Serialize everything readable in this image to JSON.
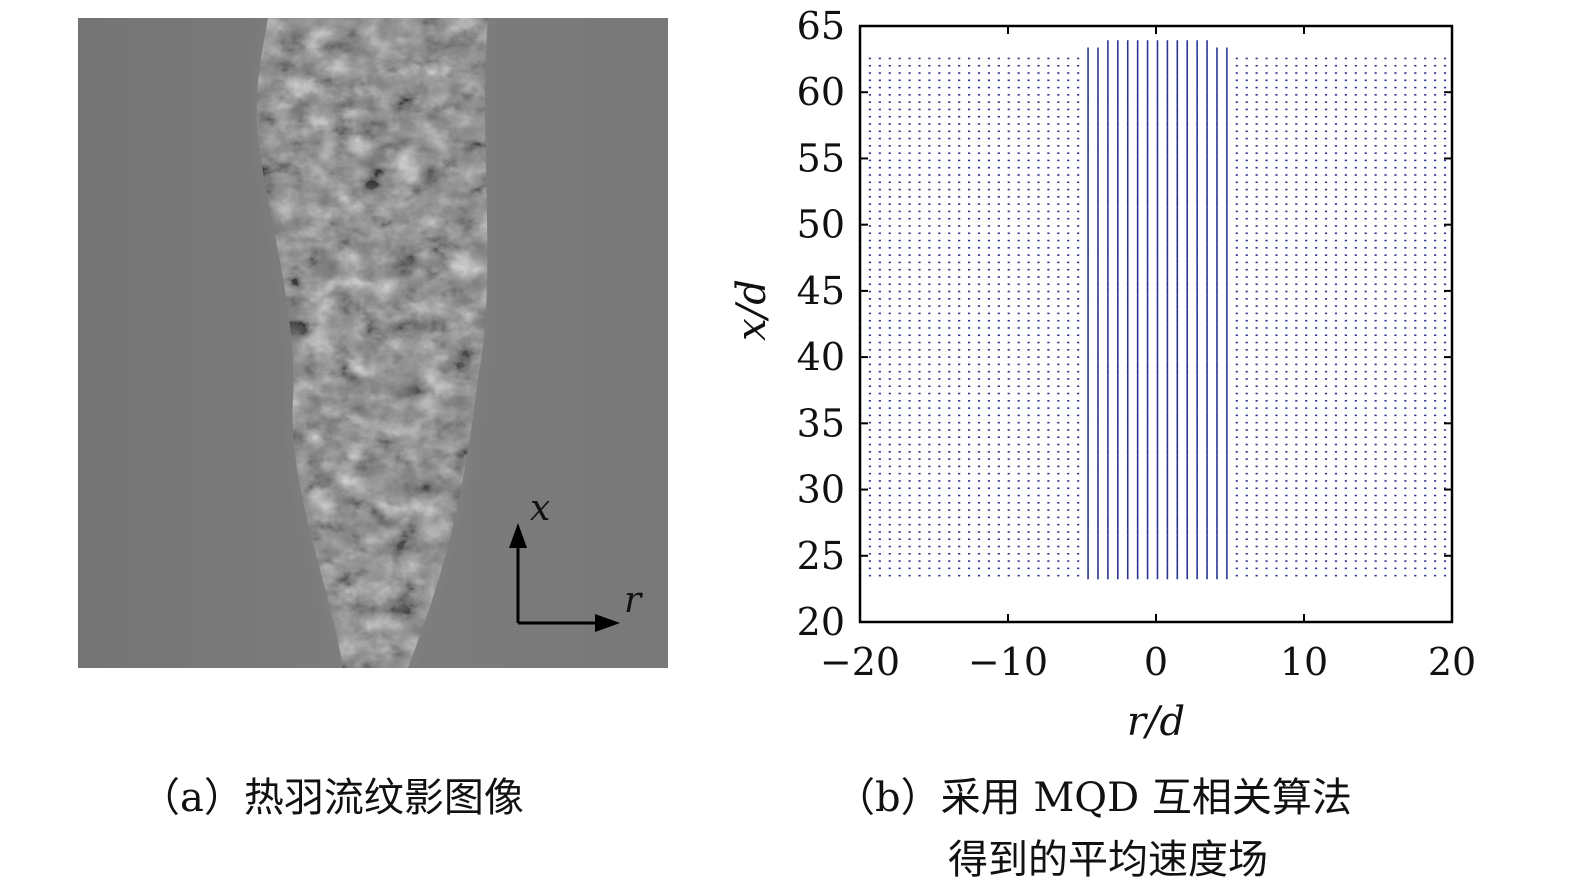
{
  "panel_a": {
    "caption": "（a）热羽流纹影图像",
    "axis_x_label": "x",
    "axis_r_label": "r"
  },
  "panel_b": {
    "caption_line1": "（b）采用 MQD 互相关算法",
    "caption_line2": "得到的平均速度场"
  },
  "colors": {
    "vector": "#2a3590",
    "schlieren_bg": "#7a7a7a",
    "axes": "#000000"
  },
  "chart_data": {
    "type": "quiver",
    "xlabel": "r/d",
    "ylabel": "x/d",
    "xlim": [
      -20,
      20
    ],
    "ylim": [
      20,
      65
    ],
    "xticks": [
      -20,
      -10,
      0,
      10,
      20
    ],
    "yticks": [
      20,
      25,
      30,
      35,
      40,
      45,
      50,
      55,
      60,
      65
    ],
    "grid": false,
    "field": {
      "r_range": [
        -20,
        20
      ],
      "x_range": [
        23.5,
        63
      ],
      "r_step": 0.67,
      "x_step": 0.55,
      "core_half_width": 5,
      "core_top": 64,
      "direction": "+x"
    }
  }
}
